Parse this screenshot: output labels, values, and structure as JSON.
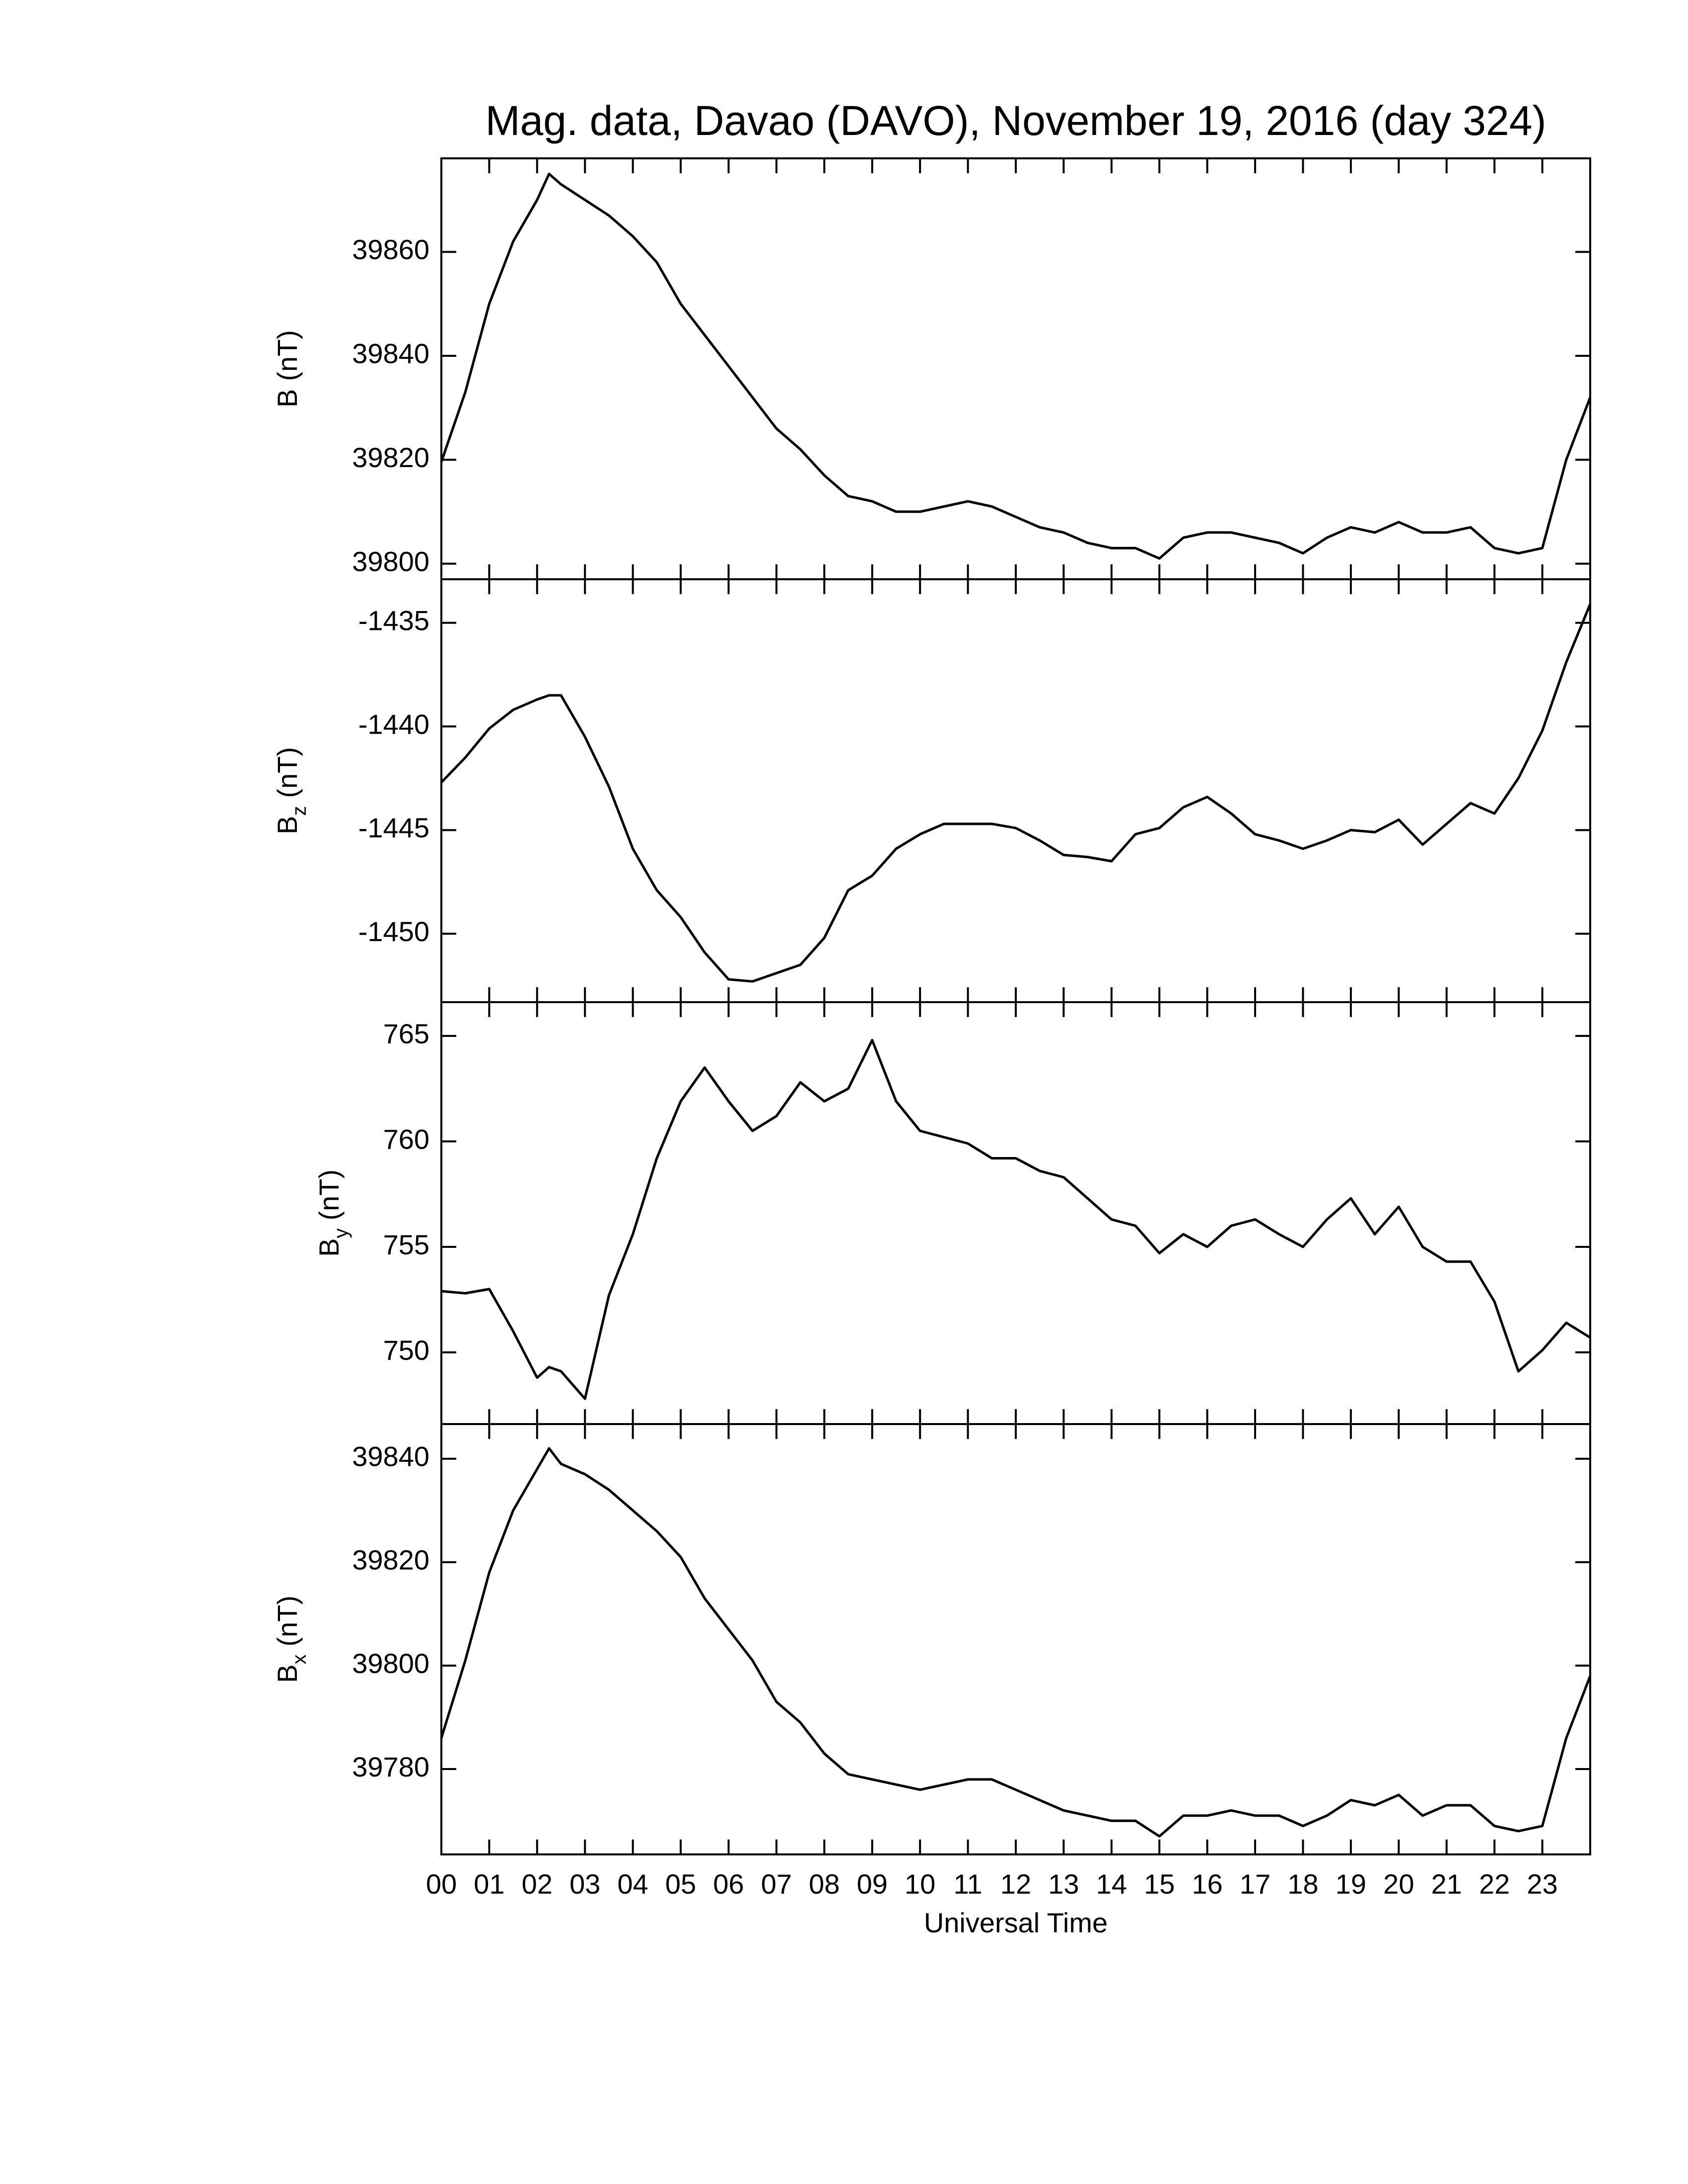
{
  "chart_data": [
    {
      "type": "line",
      "title": "Mag. data, Davao (DAVO), November 19, 2016 (day 324)",
      "ylabel": {
        "text": "B",
        "unit": "(nT)"
      },
      "x": [
        0,
        0.5,
        1,
        1.5,
        2,
        2.25,
        2.5,
        3,
        3.5,
        4,
        4.5,
        5,
        5.5,
        6,
        6.5,
        7,
        7.5,
        8,
        8.5,
        9,
        9.5,
        10,
        10.5,
        11,
        11.5,
        12,
        12.5,
        13,
        13.5,
        14,
        14.5,
        15,
        15.5,
        16,
        16.5,
        17,
        17.5,
        18,
        18.5,
        19,
        19.5,
        20,
        20.5,
        21,
        21.5,
        22,
        22.5,
        23,
        23.5,
        24
      ],
      "values": [
        39819.6,
        39833,
        39850,
        39862,
        39870,
        39875,
        39873,
        39870,
        39867,
        39863,
        39858,
        39850,
        39844,
        39838,
        39832,
        39826,
        39822,
        39817,
        39813,
        39812,
        39810,
        39810,
        39811,
        39812,
        39811,
        39809,
        39807,
        39806,
        39804,
        39803,
        39803,
        39801,
        39805,
        39806,
        39806,
        39805,
        39804,
        39802,
        39805,
        39807,
        39806,
        39808,
        39806,
        39806,
        39807,
        39803,
        39802,
        39803,
        39820,
        39832
      ],
      "color": "#000000",
      "ylim": [
        39797,
        39878
      ],
      "yticks": [
        39800,
        39820,
        39840,
        39860
      ]
    },
    {
      "type": "line",
      "ylabel": {
        "text": "B",
        "subscript": "z",
        "unit": "(nT)"
      },
      "x": [
        0,
        0.5,
        1,
        1.5,
        2,
        2.25,
        2.5,
        3,
        3.5,
        4,
        4.5,
        5,
        5.5,
        6,
        6.5,
        7,
        7.5,
        8,
        8.5,
        9,
        9.5,
        10,
        10.5,
        11,
        11.5,
        12,
        12.5,
        13,
        13.5,
        14,
        14.5,
        15,
        15.5,
        16,
        16.5,
        17,
        17.5,
        18,
        18.5,
        19,
        19.5,
        20,
        20.5,
        21,
        21.5,
        22,
        22.5,
        23,
        23.5,
        24
      ],
      "values": [
        -1442.7,
        -1441.5,
        -1440.1,
        -1439.2,
        -1438.7,
        -1438.5,
        -1438.5,
        -1440.5,
        -1442.9,
        -1445.9,
        -1447.9,
        -1449.2,
        -1450.9,
        -1452.2,
        -1452.3,
        -1451.9,
        -1451.5,
        -1450.2,
        -1447.9,
        -1447.2,
        -1445.9,
        -1445.2,
        -1444.7,
        -1444.7,
        -1444.7,
        -1444.9,
        -1445.5,
        -1446.2,
        -1446.3,
        -1446.5,
        -1445.2,
        -1444.9,
        -1443.9,
        -1443.4,
        -1444.2,
        -1445.2,
        -1445.5,
        -1445.9,
        -1445.5,
        -1445.0,
        -1445.1,
        -1444.5,
        -1445.7,
        -1444.7,
        -1443.7,
        -1444.2,
        -1442.5,
        -1440.2,
        -1436.9,
        -1434.1
      ],
      "color": "#000000",
      "ylim": [
        -1453.3,
        -1432.9
      ],
      "yticks": [
        -1450,
        -1445,
        -1440,
        -1435
      ]
    },
    {
      "type": "line",
      "ylabel": {
        "text": "B",
        "subscript": "y",
        "unit": "(nT)"
      },
      "x": [
        0,
        0.5,
        1,
        1.5,
        2,
        2.25,
        2.5,
        3,
        3.5,
        4,
        4.5,
        5,
        5.5,
        6,
        6.5,
        7,
        7.5,
        8,
        8.5,
        9,
        9.5,
        10,
        10.5,
        11,
        11.5,
        12,
        12.5,
        13,
        13.5,
        14,
        14.5,
        15,
        15.5,
        16,
        16.5,
        17,
        17.5,
        18,
        18.5,
        19,
        19.5,
        20,
        20.5,
        21,
        21.5,
        22,
        22.5,
        23,
        23.5,
        24
      ],
      "values": [
        752.9,
        752.8,
        753.0,
        751.0,
        748.8,
        749.3,
        749.1,
        747.8,
        752.7,
        755.6,
        759.2,
        761.9,
        763.5,
        761.9,
        760.5,
        761.2,
        762.8,
        761.9,
        762.5,
        764.8,
        761.9,
        760.5,
        760.2,
        759.9,
        759.2,
        759.2,
        758.6,
        758.3,
        757.3,
        756.3,
        756.0,
        754.7,
        755.6,
        755.0,
        756.0,
        756.3,
        755.6,
        755.0,
        756.3,
        757.3,
        755.6,
        756.9,
        755.0,
        754.3,
        754.3,
        752.4,
        749.1,
        750.1,
        751.4,
        750.7
      ],
      "color": "#000000",
      "ylim": [
        746.6,
        766.6
      ],
      "yticks": [
        750,
        755,
        760,
        765
      ]
    },
    {
      "type": "line",
      "ylabel": {
        "text": "B",
        "subscript": "x",
        "unit": "(nT)"
      },
      "xlabel": "Universal Time",
      "x": [
        0,
        0.5,
        1,
        1.5,
        2,
        2.25,
        2.5,
        3,
        3.5,
        4,
        4.5,
        5,
        5.5,
        6,
        6.5,
        7,
        7.5,
        8,
        8.5,
        9,
        9.5,
        10,
        10.5,
        11,
        11.5,
        12,
        12.5,
        13,
        13.5,
        14,
        14.5,
        15,
        15.5,
        16,
        16.5,
        17,
        17.5,
        18,
        18.5,
        19,
        19.5,
        20,
        20.5,
        21,
        21.5,
        22,
        22.5,
        23,
        23.5,
        24
      ],
      "values": [
        39786,
        39801,
        39818,
        39830,
        39838,
        39842,
        39839,
        39837,
        39834,
        39830,
        39826,
        39821,
        39813,
        39807,
        39801,
        39793,
        39789,
        39783,
        39779,
        39778,
        39777,
        39776,
        39777,
        39778,
        39778,
        39776,
        39774,
        39772,
        39771,
        39770,
        39770,
        39767,
        39771,
        39771,
        39772,
        39771,
        39771,
        39769,
        39771,
        39774,
        39773,
        39775,
        39771,
        39773,
        39773,
        39769,
        39768,
        39769,
        39786,
        39798
      ],
      "color": "#000000",
      "ylim": [
        39763.5,
        39846.7
      ],
      "yticks": [
        39780,
        39800,
        39820,
        39840
      ],
      "xlim": [
        0,
        24
      ],
      "xticks": [
        {
          "value": 0,
          "label": "00"
        },
        {
          "value": 1,
          "label": "01"
        },
        {
          "value": 2,
          "label": "02"
        },
        {
          "value": 3,
          "label": "03"
        },
        {
          "value": 4,
          "label": "04"
        },
        {
          "value": 5,
          "label": "05"
        },
        {
          "value": 6,
          "label": "06"
        },
        {
          "value": 7,
          "label": "07"
        },
        {
          "value": 8,
          "label": "08"
        },
        {
          "value": 9,
          "label": "09"
        },
        {
          "value": 10,
          "label": "10"
        },
        {
          "value": 11,
          "label": "11"
        },
        {
          "value": 12,
          "label": "12"
        },
        {
          "value": 13,
          "label": "13"
        },
        {
          "value": 14,
          "label": "14"
        },
        {
          "value": 15,
          "label": "15"
        },
        {
          "value": 16,
          "label": "16"
        },
        {
          "value": 17,
          "label": "17"
        },
        {
          "value": 18,
          "label": "18"
        },
        {
          "value": 19,
          "label": "19"
        },
        {
          "value": 20,
          "label": "20"
        },
        {
          "value": 21,
          "label": "21"
        },
        {
          "value": 22,
          "label": "22"
        },
        {
          "value": 23,
          "label": "23"
        }
      ]
    }
  ]
}
